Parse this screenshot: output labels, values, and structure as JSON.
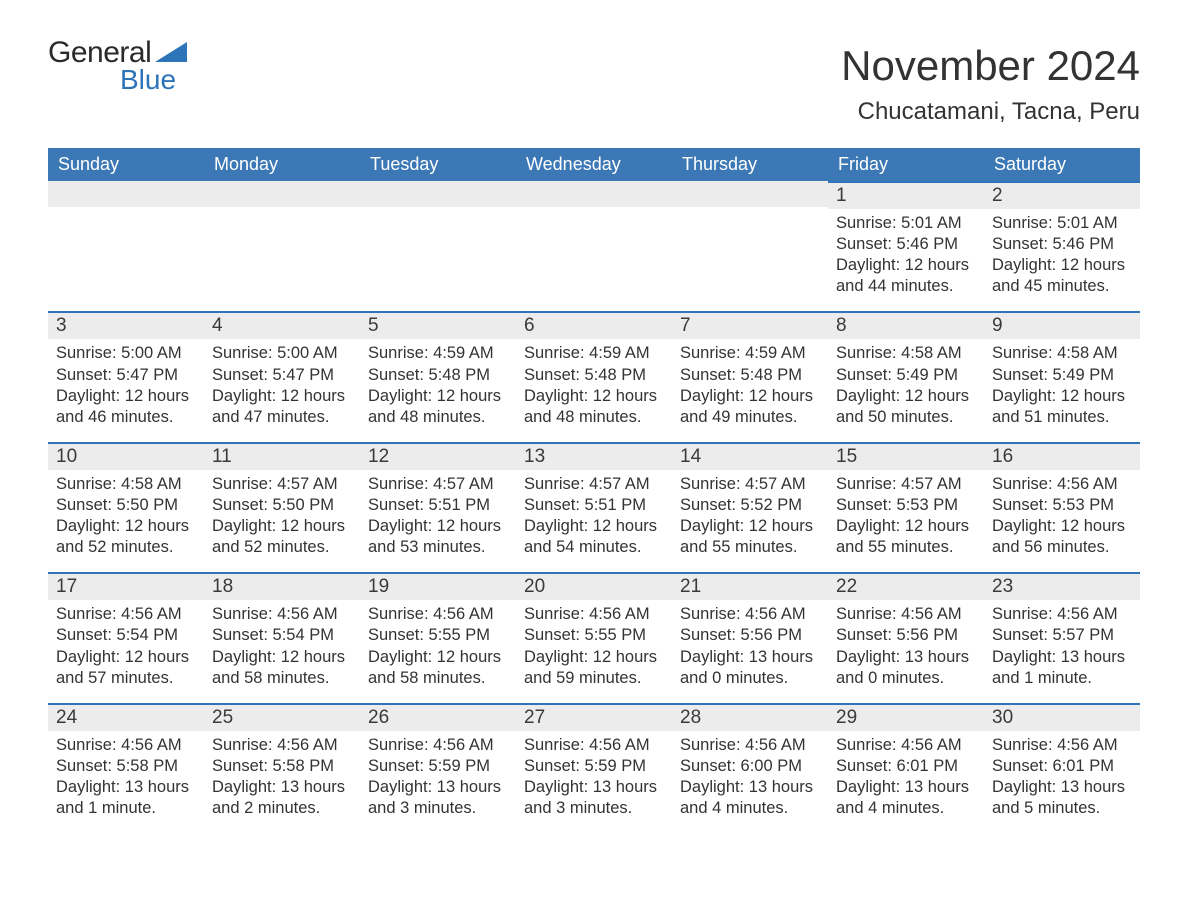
{
  "logo": {
    "word1": "General",
    "word2": "Blue",
    "accent_color": "#2d74b8"
  },
  "header": {
    "month_title": "November 2024",
    "location": "Chucatamani, Tacna, Peru"
  },
  "colors": {
    "header_bg": "#3b78b5",
    "header_fg": "#ffffff",
    "daybar_bg": "#ececec",
    "daybar_border": "#2d74b8",
    "text": "#333333"
  },
  "weekdays": [
    "Sunday",
    "Monday",
    "Tuesday",
    "Wednesday",
    "Thursday",
    "Friday",
    "Saturday"
  ],
  "weeks": [
    [
      null,
      null,
      null,
      null,
      null,
      {
        "day": 1,
        "sunrise": "5:01 AM",
        "sunset": "5:46 PM",
        "daylight": "12 hours and 44 minutes."
      },
      {
        "day": 2,
        "sunrise": "5:01 AM",
        "sunset": "5:46 PM",
        "daylight": "12 hours and 45 minutes."
      }
    ],
    [
      {
        "day": 3,
        "sunrise": "5:00 AM",
        "sunset": "5:47 PM",
        "daylight": "12 hours and 46 minutes."
      },
      {
        "day": 4,
        "sunrise": "5:00 AM",
        "sunset": "5:47 PM",
        "daylight": "12 hours and 47 minutes."
      },
      {
        "day": 5,
        "sunrise": "4:59 AM",
        "sunset": "5:48 PM",
        "daylight": "12 hours and 48 minutes."
      },
      {
        "day": 6,
        "sunrise": "4:59 AM",
        "sunset": "5:48 PM",
        "daylight": "12 hours and 48 minutes."
      },
      {
        "day": 7,
        "sunrise": "4:59 AM",
        "sunset": "5:48 PM",
        "daylight": "12 hours and 49 minutes."
      },
      {
        "day": 8,
        "sunrise": "4:58 AM",
        "sunset": "5:49 PM",
        "daylight": "12 hours and 50 minutes."
      },
      {
        "day": 9,
        "sunrise": "4:58 AM",
        "sunset": "5:49 PM",
        "daylight": "12 hours and 51 minutes."
      }
    ],
    [
      {
        "day": 10,
        "sunrise": "4:58 AM",
        "sunset": "5:50 PM",
        "daylight": "12 hours and 52 minutes."
      },
      {
        "day": 11,
        "sunrise": "4:57 AM",
        "sunset": "5:50 PM",
        "daylight": "12 hours and 52 minutes."
      },
      {
        "day": 12,
        "sunrise": "4:57 AM",
        "sunset": "5:51 PM",
        "daylight": "12 hours and 53 minutes."
      },
      {
        "day": 13,
        "sunrise": "4:57 AM",
        "sunset": "5:51 PM",
        "daylight": "12 hours and 54 minutes."
      },
      {
        "day": 14,
        "sunrise": "4:57 AM",
        "sunset": "5:52 PM",
        "daylight": "12 hours and 55 minutes."
      },
      {
        "day": 15,
        "sunrise": "4:57 AM",
        "sunset": "5:53 PM",
        "daylight": "12 hours and 55 minutes."
      },
      {
        "day": 16,
        "sunrise": "4:56 AM",
        "sunset": "5:53 PM",
        "daylight": "12 hours and 56 minutes."
      }
    ],
    [
      {
        "day": 17,
        "sunrise": "4:56 AM",
        "sunset": "5:54 PM",
        "daylight": "12 hours and 57 minutes."
      },
      {
        "day": 18,
        "sunrise": "4:56 AM",
        "sunset": "5:54 PM",
        "daylight": "12 hours and 58 minutes."
      },
      {
        "day": 19,
        "sunrise": "4:56 AM",
        "sunset": "5:55 PM",
        "daylight": "12 hours and 58 minutes."
      },
      {
        "day": 20,
        "sunrise": "4:56 AM",
        "sunset": "5:55 PM",
        "daylight": "12 hours and 59 minutes."
      },
      {
        "day": 21,
        "sunrise": "4:56 AM",
        "sunset": "5:56 PM",
        "daylight": "13 hours and 0 minutes."
      },
      {
        "day": 22,
        "sunrise": "4:56 AM",
        "sunset": "5:56 PM",
        "daylight": "13 hours and 0 minutes."
      },
      {
        "day": 23,
        "sunrise": "4:56 AM",
        "sunset": "5:57 PM",
        "daylight": "13 hours and 1 minute."
      }
    ],
    [
      {
        "day": 24,
        "sunrise": "4:56 AM",
        "sunset": "5:58 PM",
        "daylight": "13 hours and 1 minute."
      },
      {
        "day": 25,
        "sunrise": "4:56 AM",
        "sunset": "5:58 PM",
        "daylight": "13 hours and 2 minutes."
      },
      {
        "day": 26,
        "sunrise": "4:56 AM",
        "sunset": "5:59 PM",
        "daylight": "13 hours and 3 minutes."
      },
      {
        "day": 27,
        "sunrise": "4:56 AM",
        "sunset": "5:59 PM",
        "daylight": "13 hours and 3 minutes."
      },
      {
        "day": 28,
        "sunrise": "4:56 AM",
        "sunset": "6:00 PM",
        "daylight": "13 hours and 4 minutes."
      },
      {
        "day": 29,
        "sunrise": "4:56 AM",
        "sunset": "6:01 PM",
        "daylight": "13 hours and 4 minutes."
      },
      {
        "day": 30,
        "sunrise": "4:56 AM",
        "sunset": "6:01 PM",
        "daylight": "13 hours and 5 minutes."
      }
    ]
  ],
  "labels": {
    "sunrise_prefix": "Sunrise: ",
    "sunset_prefix": "Sunset: ",
    "daylight_prefix": "Daylight: "
  }
}
